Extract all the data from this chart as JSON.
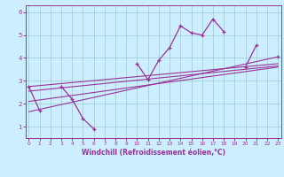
{
  "x_data": [
    0,
    1,
    2,
    3,
    4,
    5,
    6,
    7,
    8,
    9,
    10,
    11,
    12,
    13,
    14,
    15,
    16,
    17,
    18,
    19,
    20,
    21,
    22,
    23
  ],
  "y_scatter": [
    2.75,
    1.7,
    null,
    2.75,
    2.2,
    1.35,
    0.9,
    null,
    null,
    null,
    3.75,
    3.05,
    3.9,
    4.45,
    5.4,
    5.1,
    5.0,
    5.7,
    5.15,
    null,
    3.6,
    4.55,
    null,
    4.05
  ],
  "reg_lines": [
    {
      "x": [
        0,
        23
      ],
      "y": [
        1.65,
        4.05
      ]
    },
    {
      "x": [
        0,
        23
      ],
      "y": [
        2.1,
        3.6
      ]
    },
    {
      "x": [
        0,
        23
      ],
      "y": [
        2.55,
        3.65
      ]
    },
    {
      "x": [
        0,
        23
      ],
      "y": [
        2.75,
        3.75
      ]
    }
  ],
  "color_main": "#993399",
  "bg_color": "#cceeff",
  "grid_color": "#99cccc",
  "xlabel": "Windchill (Refroidissement éolien,°C)",
  "yticks": [
    1,
    2,
    3,
    4,
    5,
    6
  ],
  "xticks": [
    0,
    1,
    2,
    3,
    4,
    5,
    6,
    7,
    8,
    9,
    10,
    11,
    12,
    13,
    14,
    15,
    16,
    17,
    18,
    19,
    20,
    21,
    22,
    23
  ],
  "ylim": [
    0.5,
    6.3
  ],
  "xlim": [
    -0.3,
    23.3
  ]
}
